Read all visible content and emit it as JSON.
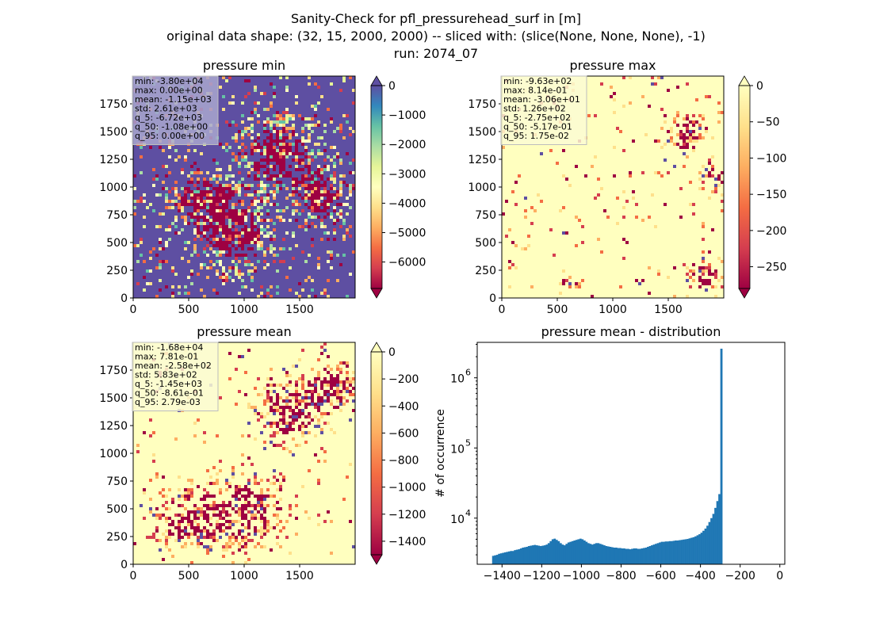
{
  "suptitle": [
    "Sanity-Check for pfl_pressurehead_surf in [m]",
    "original data shape: (32, 15, 2000, 2000) -- sliced with: (slice(None, None, None), -1)",
    "run: 2074_07"
  ],
  "chart_data": [
    {
      "type": "heatmap",
      "title": "pressure min",
      "colormap": "Spectral",
      "colormap_stops": [
        "#9e0142",
        "#d53e4f",
        "#f46d43",
        "#fdae61",
        "#fee08b",
        "#ffffbf",
        "#e6f598",
        "#abdda4",
        "#66c2a5",
        "#3288bd",
        "#5e4fa2"
      ],
      "xlim": [
        0,
        2000
      ],
      "ylim": [
        0,
        2000
      ],
      "xticks": [
        "0",
        "500",
        "1000",
        "1500"
      ],
      "yticks": [
        "0",
        "250",
        "500",
        "750",
        "1000",
        "1250",
        "1500",
        "1750"
      ],
      "clim": [
        -6900,
        0
      ],
      "colorbar_ticks": [
        "0",
        "−1000",
        "−2000",
        "−3000",
        "−4000",
        "−5000",
        "−6000"
      ],
      "colorbar_tick_values": [
        0,
        -1000,
        -2000,
        -3000,
        -4000,
        -5000,
        -6000
      ],
      "colorbar_extend": "both",
      "dominant_value": 0,
      "stats": [
        "min: -3.80e+04",
        "max: 0.00e+00",
        "mean: -1.15e+03",
        "std: 2.61e+03",
        "q_5: -6.72e+03",
        "q_50: -1.08e+00",
        "q_95: 0.00e+00"
      ],
      "stats_box_color": "#a9a7cf"
    },
    {
      "type": "heatmap",
      "title": "pressure max",
      "colormap": "Spectral",
      "colormap_stops": [
        "#9e0142",
        "#d53e4f",
        "#f46d43",
        "#fdae61",
        "#fee08b",
        "#ffffbf"
      ],
      "xlim": [
        0,
        2000
      ],
      "ylim": [
        0,
        2000
      ],
      "xticks": [
        "0",
        "500",
        "1000",
        "1500"
      ],
      "yticks": [
        "0",
        "250",
        "500",
        "750",
        "1000",
        "1250",
        "1500",
        "1750"
      ],
      "clim": [
        -280,
        0
      ],
      "colorbar_ticks": [
        "0",
        "−50",
        "−100",
        "−150",
        "−200",
        "−250"
      ],
      "colorbar_tick_values": [
        0,
        -50,
        -100,
        -150,
        -200,
        -250
      ],
      "colorbar_extend": "both",
      "dominant_value": 0,
      "stats": [
        "min: -9.63e+02",
        "max: 8.14e-01",
        "mean: -3.06e+01",
        "std: 1.26e+02",
        "q_5: -2.75e+02",
        "q_50: -5.17e-01",
        "q_95: 1.75e-02"
      ],
      "stats_box_color": "#fcfcd2"
    },
    {
      "type": "heatmap",
      "title": "pressure mean",
      "colormap": "Spectral",
      "colormap_stops": [
        "#9e0142",
        "#d53e4f",
        "#f46d43",
        "#fdae61",
        "#fee08b",
        "#ffffbf"
      ],
      "xlim": [
        0,
        2000
      ],
      "ylim": [
        0,
        2000
      ],
      "xticks": [
        "0",
        "500",
        "1000",
        "1500"
      ],
      "yticks": [
        "0",
        "250",
        "500",
        "750",
        "1000",
        "1250",
        "1500",
        "1750"
      ],
      "clim": [
        -1500,
        0
      ],
      "colorbar_ticks": [
        "0",
        "−200",
        "−400",
        "−600",
        "−800",
        "−1000",
        "−1200",
        "−1400"
      ],
      "colorbar_tick_values": [
        0,
        -200,
        -400,
        -600,
        -800,
        -1000,
        -1200,
        -1400
      ],
      "colorbar_extend": "both",
      "dominant_value": 0,
      "stats": [
        "min: -1.68e+04",
        "max: 7.81e-01",
        "mean: -2.58e+02",
        "std: 5.83e+02",
        "q_5: -1.45e+03",
        "q_50: -8.61e-01",
        "q_95: 2.79e-03"
      ],
      "stats_box_color": "#fcfcd2"
    },
    {
      "type": "bar",
      "title": "pressure mean - distribution",
      "ylabel": "# of occurrence",
      "xlabel": "",
      "yscale": "log",
      "xlim": [
        -1525,
        25
      ],
      "ylim": [
        2200,
        3200000
      ],
      "xticks": [
        "−1400",
        "−1200",
        "−1000",
        "−800",
        "−600",
        "−400",
        "−200",
        "0"
      ],
      "xtick_values": [
        -1400,
        -1200,
        -1000,
        -800,
        -600,
        -400,
        -200,
        0
      ],
      "yticks": [
        "10",
        "10",
        "10"
      ],
      "ytick_exponents": [
        "4",
        "5",
        "6"
      ],
      "ytick_values": [
        10000,
        100000,
        1000000
      ],
      "bar_color": "#1f77b4",
      "bin_width": 10,
      "bin_start": -1450,
      "counts": [
        2900,
        2950,
        3000,
        3100,
        3150,
        3200,
        3250,
        3300,
        3350,
        3400,
        3400,
        3500,
        3550,
        3600,
        3700,
        3800,
        3850,
        3900,
        4000,
        4050,
        4100,
        4150,
        4100,
        4050,
        4000,
        4050,
        4100,
        4200,
        4400,
        4700,
        5000,
        5100,
        4900,
        4700,
        4400,
        4200,
        4100,
        4300,
        4500,
        4600,
        4700,
        4800,
        4900,
        5000,
        5100,
        5000,
        4800,
        4600,
        4400,
        4300,
        4200,
        4300,
        4400,
        4400,
        4300,
        4200,
        4100,
        4000,
        3950,
        3900,
        3850,
        3800,
        3800,
        3750,
        3750,
        3700,
        3700,
        3650,
        3650,
        3600,
        3650,
        3700,
        3700,
        3650,
        3650,
        3700,
        3750,
        3800,
        3900,
        4000,
        4100,
        4200,
        4300,
        4400,
        4500,
        4600,
        4600,
        4650,
        4650,
        4700,
        4700,
        4750,
        4800,
        4800,
        4850,
        4900,
        4950,
        5000,
        5050,
        5150,
        5250,
        5350,
        5500,
        5700,
        5900,
        6200,
        6600,
        7100,
        7800,
        8800,
        10000,
        11500,
        14000,
        17500,
        22000,
        2600000
      ]
    }
  ]
}
